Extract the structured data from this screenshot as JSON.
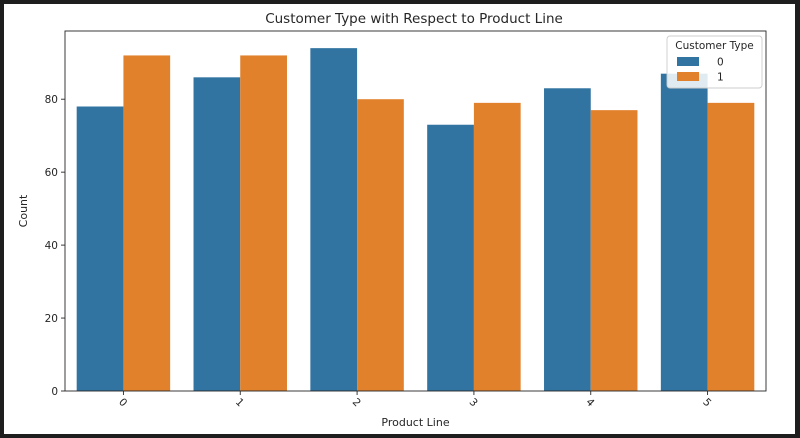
{
  "chart_data": {
    "type": "bar",
    "title": "Customer Type with Respect to Product Line",
    "xlabel": "Product Line",
    "ylabel": "Count",
    "categories": [
      "0",
      "1",
      "2",
      "3",
      "4",
      "5"
    ],
    "yticks": [
      0,
      20,
      40,
      60,
      80
    ],
    "ylim": [
      0,
      98.7
    ],
    "legend": {
      "title": "Customer Type",
      "placement": "top-right"
    },
    "series": [
      {
        "name": "0",
        "color": "#3274a1",
        "values": [
          78,
          86,
          94,
          73,
          83,
          87
        ]
      },
      {
        "name": "1",
        "color": "#e1812c",
        "values": [
          92,
          92,
          80,
          79,
          77,
          79
        ]
      }
    ],
    "grid": false,
    "xtick_rotation": 45
  }
}
